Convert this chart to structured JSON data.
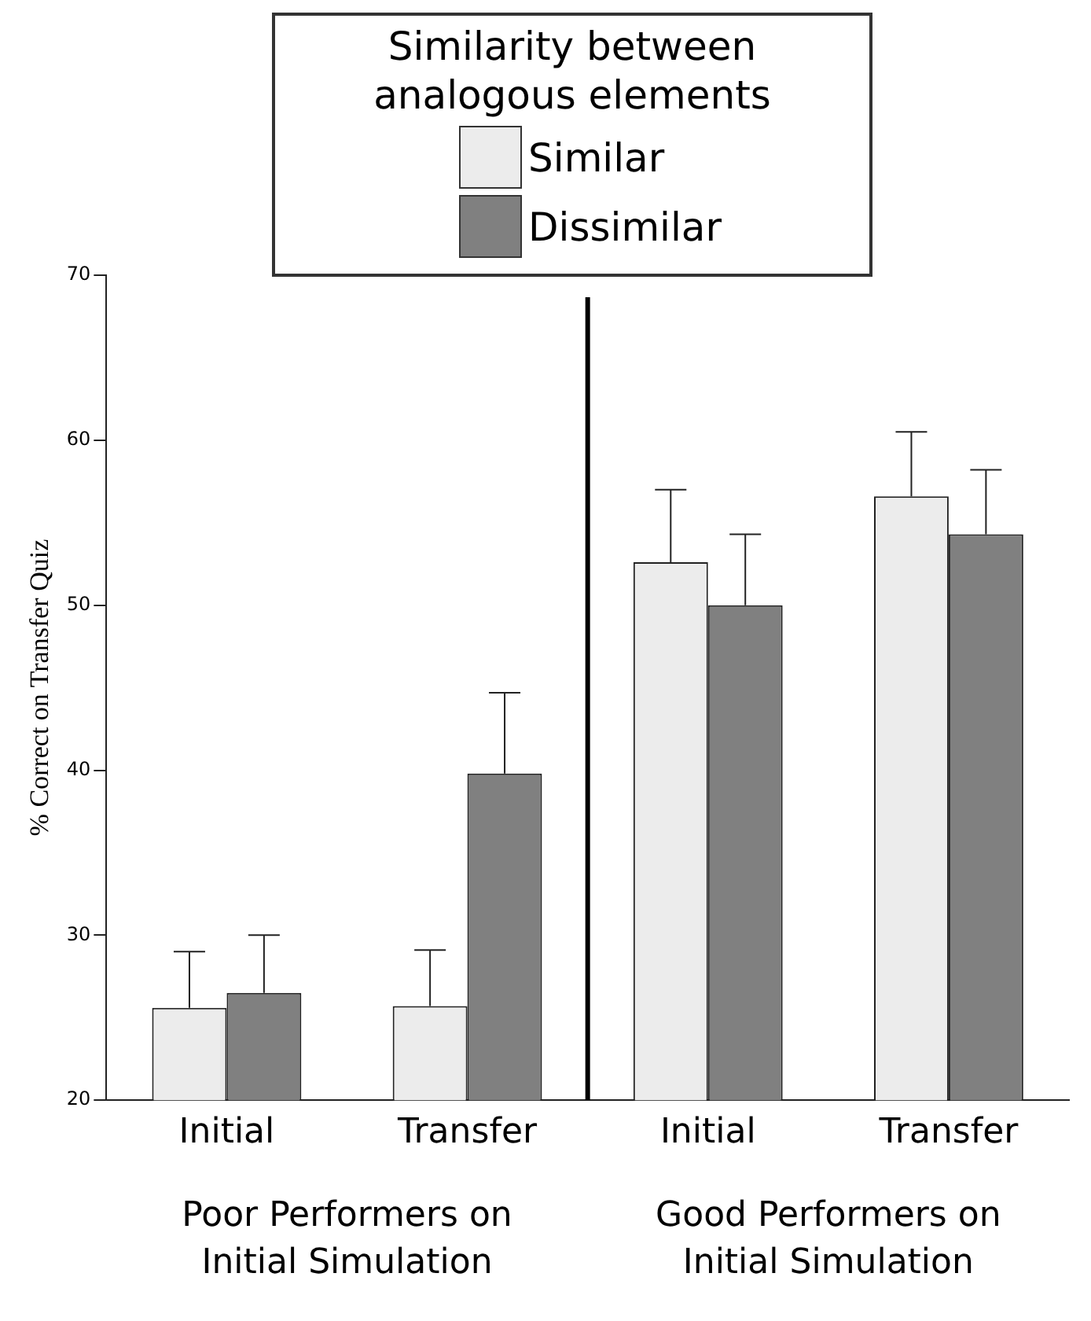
{
  "chart_data": {
    "type": "bar",
    "categories": [
      "Initial",
      "Transfer",
      "Initial",
      "Transfer"
    ],
    "legend_title": "Similarity between analogous elements",
    "ylabel": "% Correct on Transfer Quiz",
    "ylim": [
      20,
      70
    ],
    "yticks": [
      20,
      30,
      40,
      50,
      60,
      70
    ],
    "grid": false,
    "legend": "top",
    "annotations": [
      "Poor Performers on Initial Simulation",
      "Good Performers on Initial Simulation"
    ],
    "series": [
      {
        "name": "Similar",
        "color": "#ececec",
        "values": [
          25.6,
          25.7,
          52.6,
          56.6
        ],
        "errors": [
          [
            25.6,
            29.0
          ],
          [
            25.7,
            29.1
          ],
          [
            52.6,
            57.0
          ],
          [
            56.6,
            60.5
          ]
        ]
      },
      {
        "name": "Dissimilar",
        "color": "#808080",
        "values": [
          26.5,
          39.8,
          50.0,
          54.3
        ],
        "errors": [
          [
            26.5,
            30.0
          ],
          [
            39.8,
            44.7
          ],
          [
            50.0,
            54.3
          ],
          [
            54.3,
            58.2
          ]
        ]
      }
    ]
  }
}
